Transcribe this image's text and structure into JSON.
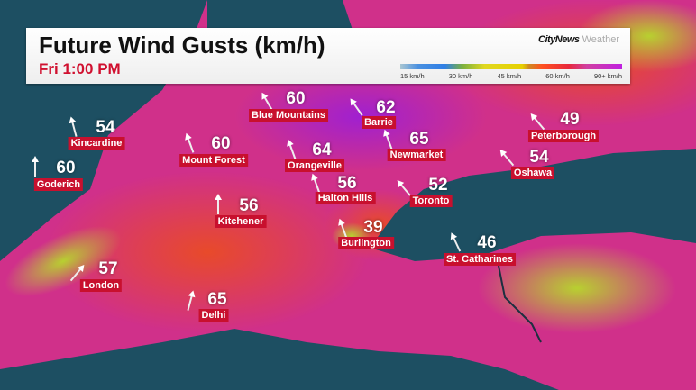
{
  "header": {
    "title": "Future Wind Gusts (km/h)",
    "time": "Fri 1:00 PM",
    "brand": "CityNews",
    "brand_suffix": "Weather"
  },
  "legend": {
    "ticks": [
      "15 km/h",
      "30 km/h",
      "45 km/h",
      "60 km/h",
      "90+ km/h"
    ]
  },
  "colors": {
    "water": "#1d4f62",
    "label_bg": "#c8102e",
    "time_text": "#d0102f"
  },
  "cities": [
    {
      "name": "Blue Mountains",
      "gust": "60"
    },
    {
      "name": "Barrie",
      "gust": "62"
    },
    {
      "name": "Kincardine",
      "gust": "54"
    },
    {
      "name": "Mount Forest",
      "gust": "60"
    },
    {
      "name": "Orangeville",
      "gust": "64"
    },
    {
      "name": "Newmarket",
      "gust": "65"
    },
    {
      "name": "Peterborough",
      "gust": "49"
    },
    {
      "name": "Oshawa",
      "gust": "54"
    },
    {
      "name": "Goderich",
      "gust": "60"
    },
    {
      "name": "Halton Hills",
      "gust": "56"
    },
    {
      "name": "Toronto",
      "gust": "52"
    },
    {
      "name": "Kitchener",
      "gust": "56"
    },
    {
      "name": "Burlington",
      "gust": "39"
    },
    {
      "name": "St. Catharines",
      "gust": "46"
    },
    {
      "name": "London",
      "gust": "57"
    },
    {
      "name": "Delhi",
      "gust": "65"
    }
  ]
}
